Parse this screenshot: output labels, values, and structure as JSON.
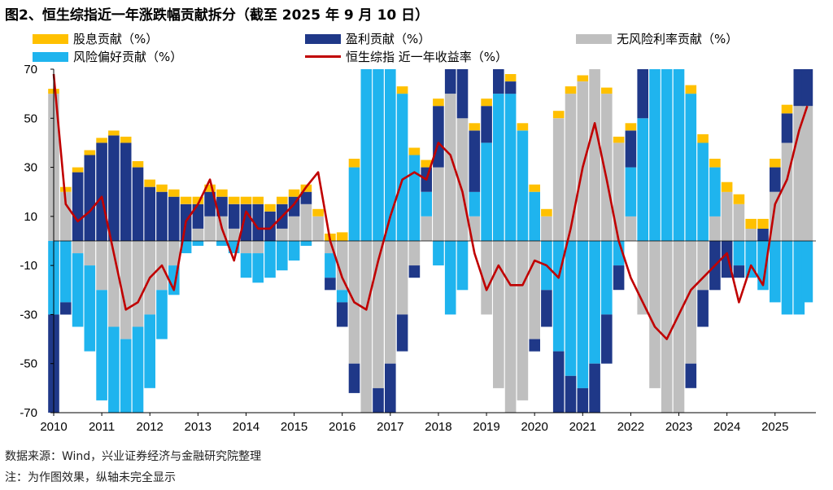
{
  "title": "图2、恒生综指近一年涨跌幅贡献拆分（截至 2025 年 9 月 10 日）",
  "legend": [
    {
      "label": "股息贡献（%）",
      "color": "#FFC000",
      "kind": "bar"
    },
    {
      "label": "盈利贡献（%）",
      "color": "#1F3888",
      "kind": "bar"
    },
    {
      "label": "无风险利率贡献（%）",
      "color": "#BFBFBF",
      "kind": "bar"
    },
    {
      "label": "风险偏好贡献（%）",
      "color": "#1FB4EE",
      "kind": "bar"
    },
    {
      "label": "恒生综指 近一年收益率（%）",
      "color": "#C00000",
      "kind": "line"
    }
  ],
  "footer": {
    "source": "数据来源：Wind，兴业证券经济与金融研究院整理",
    "note": "注：为作图效果，纵轴未完全显示"
  },
  "chart_data": {
    "type": "bar",
    "title": "图2、恒生综指近一年涨跌幅贡献拆分（截至 2025 年 9 月 10 日）",
    "xlabel": "",
    "ylabel": "",
    "ylim": [
      -70,
      70
    ],
    "yticks": [
      70,
      50,
      30,
      10,
      -10,
      -30,
      -50,
      -70
    ],
    "xticks": [
      "2010",
      "2011",
      "2012",
      "2013",
      "2014",
      "2015",
      "2016",
      "2017",
      "2018",
      "2019",
      "2020",
      "2021",
      "2022",
      "2023",
      "2024",
      "2025"
    ],
    "x": [
      2010.0,
      2010.25,
      2010.5,
      2010.75,
      2011.0,
      2011.25,
      2011.5,
      2011.75,
      2012.0,
      2012.25,
      2012.5,
      2012.75,
      2013.0,
      2013.25,
      2013.5,
      2013.75,
      2014.0,
      2014.25,
      2014.5,
      2014.75,
      2015.0,
      2015.25,
      2015.5,
      2015.75,
      2016.0,
      2016.25,
      2016.5,
      2016.75,
      2017.0,
      2017.25,
      2017.5,
      2017.75,
      2018.0,
      2018.25,
      2018.5,
      2018.75,
      2019.0,
      2019.25,
      2019.5,
      2019.75,
      2020.0,
      2020.25,
      2020.5,
      2020.75,
      2021.0,
      2021.25,
      2021.5,
      2021.75,
      2022.0,
      2022.25,
      2022.5,
      2022.75,
      2023.0,
      2023.25,
      2023.5,
      2023.75,
      2024.0,
      2024.25,
      2024.5,
      2024.75,
      2025.0,
      2025.25,
      2025.5,
      2025.67
    ],
    "grid": false,
    "legend_position": "top",
    "series": [
      {
        "name": "股息贡献（%）",
        "type": "bar",
        "values": [
          2,
          2,
          2,
          2,
          2,
          2,
          2.5,
          2.5,
          3,
          3,
          3,
          3,
          3,
          3,
          3,
          3,
          3,
          3,
          3,
          3,
          3,
          3,
          3,
          3,
          3.5,
          3.5,
          3.5,
          3.5,
          3,
          3,
          3,
          3,
          3,
          3,
          3,
          3,
          3,
          3,
          3,
          3,
          3,
          3,
          3,
          3,
          2.5,
          2.5,
          2.5,
          2.5,
          3,
          3,
          3,
          3,
          3.5,
          3.5,
          3.5,
          3.5,
          4,
          4,
          4,
          4,
          3.5,
          3.5,
          3,
          3
        ]
      },
      {
        "name": "盈利贡献（%）",
        "type": "bar",
        "values": [
          -70,
          -5,
          28,
          35,
          40,
          43,
          40,
          30,
          22,
          20,
          18,
          15,
          10,
          10,
          8,
          10,
          15,
          15,
          12,
          10,
          8,
          5,
          0,
          -5,
          -10,
          -12,
          -15,
          -18,
          -20,
          -15,
          -5,
          10,
          25,
          30,
          30,
          25,
          15,
          10,
          5,
          0,
          -5,
          -15,
          -25,
          -35,
          -30,
          -25,
          -20,
          -10,
          15,
          20,
          15,
          10,
          -5,
          -10,
          -15,
          -20,
          -15,
          -5,
          0,
          5,
          10,
          12,
          15,
          15
        ]
      },
      {
        "name": "无风险利率贡献（%）",
        "type": "bar",
        "values": [
          60,
          20,
          -5,
          -10,
          -20,
          -35,
          -40,
          -35,
          -30,
          -20,
          -10,
          0,
          5,
          10,
          10,
          5,
          -5,
          -5,
          0,
          5,
          10,
          15,
          10,
          -5,
          -20,
          -50,
          -70,
          -60,
          -50,
          -30,
          -10,
          10,
          30,
          60,
          50,
          10,
          -30,
          -60,
          -70,
          -65,
          -40,
          10,
          50,
          60,
          65,
          70,
          60,
          40,
          10,
          -30,
          -60,
          -70,
          -70,
          -50,
          -20,
          10,
          20,
          15,
          5,
          0,
          20,
          40,
          55,
          55
        ]
      },
      {
        "name": "风险偏好贡献（%）",
        "type": "bar",
        "values": [
          -30,
          -25,
          -30,
          -35,
          -45,
          -50,
          -48,
          -40,
          -30,
          -20,
          -12,
          -5,
          -2,
          0,
          -2,
          -5,
          -10,
          -12,
          -15,
          -12,
          -8,
          -2,
          0,
          -10,
          -5,
          30,
          70,
          70,
          70,
          60,
          35,
          10,
          -10,
          -30,
          -20,
          10,
          40,
          60,
          60,
          45,
          20,
          -20,
          -45,
          -55,
          -60,
          -50,
          -30,
          -10,
          20,
          50,
          70,
          70,
          70,
          60,
          40,
          20,
          0,
          -10,
          -15,
          -20,
          -25,
          -30,
          -30,
          -25
        ]
      },
      {
        "name": "恒生综指 近一年收益率（%）",
        "type": "line",
        "values": [
          68,
          15,
          8,
          12,
          18,
          -5,
          -28,
          -25,
          -15,
          -10,
          -20,
          8,
          15,
          25,
          5,
          -8,
          12,
          5,
          5,
          10,
          15,
          22,
          28,
          0,
          -15,
          -25,
          -28,
          -8,
          10,
          25,
          28,
          25,
          40,
          35,
          20,
          -5,
          -20,
          -10,
          -18,
          -18,
          -8,
          -10,
          -15,
          5,
          30,
          48,
          25,
          0,
          -15,
          -25,
          -35,
          -40,
          -30,
          -20,
          -15,
          -10,
          -5,
          -25,
          -10,
          -18,
          15,
          25,
          45,
          55
        ]
      }
    ]
  }
}
